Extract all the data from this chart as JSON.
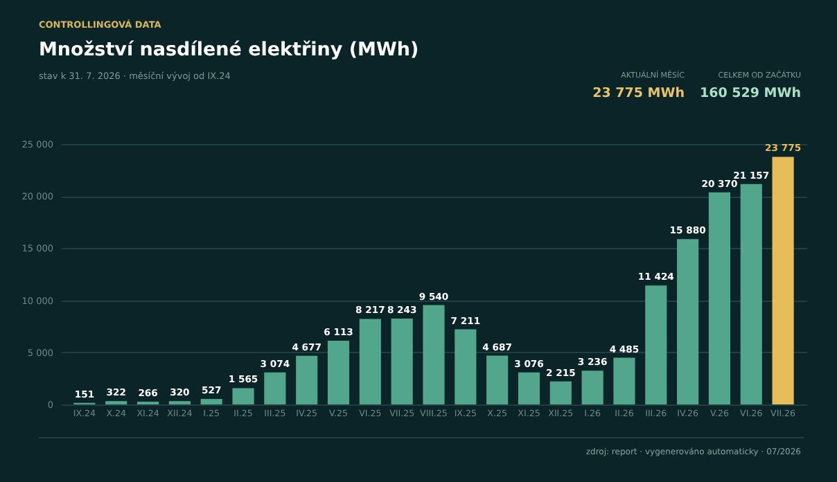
{
  "chart_data": {
    "type": "bar",
    "title": "Množství nasdílené elektřiny (MWh)",
    "subtitle": "stav k 31. 7. 2026  ·  měsíční vývoj od IX.24",
    "annotations": [
      "CONTROLLINGOVÁ DATA",
      "AKTUÁLNÍ MĚSÍC",
      "23 775 MWh",
      "CELKEM OD ZAČÁTKU",
      "160 529 MWh",
      "zdroj: report · vygenerováno automaticky · 07/2026"
    ],
    "categories": [
      "IX.24",
      "X.24",
      "XI.24",
      "XII.24",
      "I.25",
      "II.25",
      "III.25",
      "IV.25",
      "V.25",
      "VI.25",
      "VII.25",
      "VIII.25",
      "IX.25",
      "X.25",
      "XI.25",
      "XII.25",
      "I.26",
      "II.26",
      "III.26",
      "IV.26",
      "V.26",
      "VI.26",
      "VII.26"
    ],
    "values": [
      151,
      322,
      266,
      320,
      527,
      1565,
      3074,
      4677,
      6113,
      8217,
      8243,
      9540,
      7211,
      4687,
      3076,
      2215,
      3236,
      4485,
      11424,
      15880,
      20370,
      21157,
      23775
    ],
    "colors": [
      "#52a68b",
      "#52a68b",
      "#52a68b",
      "#52a68b",
      "#52a68b",
      "#52a68b",
      "#52a68b",
      "#52a68b",
      "#52a68b",
      "#52a68b",
      "#52a68b",
      "#52a68b",
      "#52a68b",
      "#52a68b",
      "#52a68b",
      "#52a68b",
      "#52a68b",
      "#52a68b",
      "#52a68b",
      "#52a68b",
      "#52a68b",
      "#52a68b",
      "#e6bd58"
    ],
    "ylim": [
      0,
      25000
    ],
    "yticks": [
      0,
      5000,
      10000,
      15000,
      20000,
      25000
    ],
    "grid": "y",
    "data_labels": true
  }
}
